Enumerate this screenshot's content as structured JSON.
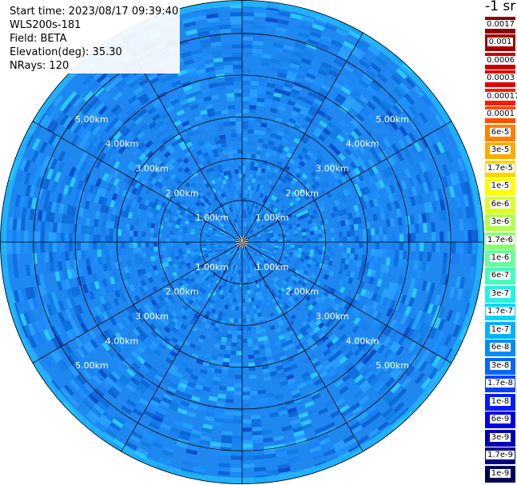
{
  "info": {
    "start_time": "Start time: 2023/08/17 09:39:40",
    "instrument": "WLS200s-181",
    "field": "Field: BETA",
    "elevation": "Elevation(deg): 35.30",
    "nrays": "NRays: 120"
  },
  "unit_label": "-1 sr",
  "ring_labels": [
    "1.00km",
    "2.00km",
    "3.00km",
    "4.00km",
    "5.00km"
  ],
  "colorbar": [
    {
      "label": "0.0017",
      "color": "#8b0000"
    },
    {
      "label": "0.001",
      "color": "#a30000"
    },
    {
      "label": "0.0006",
      "color": "#c40000"
    },
    {
      "label": "0.0003",
      "color": "#e00000"
    },
    {
      "label": "0.00017",
      "color": "#ff1a00"
    },
    {
      "label": "0.0001",
      "color": "#ff4d00"
    },
    {
      "label": "6e-5",
      "color": "#ff8000"
    },
    {
      "label": "3e-5",
      "color": "#ffaa00"
    },
    {
      "label": "1.7e-5",
      "color": "#ffd500"
    },
    {
      "label": "1e-5",
      "color": "#ffff00"
    },
    {
      "label": "6e-6",
      "color": "#d9ff26"
    },
    {
      "label": "3e-6",
      "color": "#b3ff4d"
    },
    {
      "label": "1.7e-6",
      "color": "#8cff73"
    },
    {
      "label": "1e-6",
      "color": "#66ff99"
    },
    {
      "label": "6e-7",
      "color": "#40ffbf"
    },
    {
      "label": "3e-7",
      "color": "#26f0e6"
    },
    {
      "label": "1.7e-7",
      "color": "#00d5ff"
    },
    {
      "label": "1e-7",
      "color": "#00b0ff"
    },
    {
      "label": "6e-8",
      "color": "#008cff"
    },
    {
      "label": "3e-8",
      "color": "#0066ff"
    },
    {
      "label": "1.7e-8",
      "color": "#0040ff"
    },
    {
      "label": "1e-8",
      "color": "#001aff"
    },
    {
      "label": "6e-9",
      "color": "#0000e6"
    },
    {
      "label": "3e-9",
      "color": "#0000b3"
    },
    {
      "label": "1.7e-9",
      "color": "#000080"
    },
    {
      "label": "1e-9",
      "color": "#00005a"
    }
  ],
  "range_km": 5.8,
  "ray_count": 120
}
